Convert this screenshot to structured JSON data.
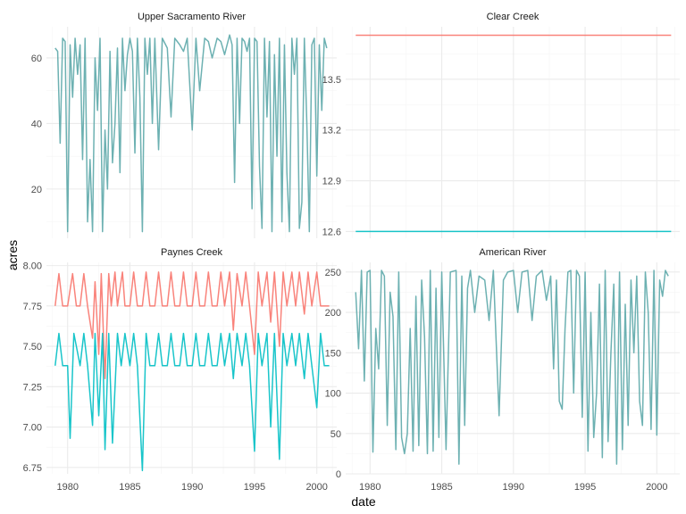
{
  "chart_data": {
    "type": "line",
    "layout": "facet_wrap 2x2, free y scales",
    "xlabel": "date",
    "ylabel": "acres",
    "x_ticks": [
      1980,
      1985,
      1990,
      1995,
      2000
    ],
    "xlim": [
      1978.3,
      2001.6
    ],
    "grid": "on",
    "legend": "none",
    "colors": {
      "series_1": "#F8766D",
      "series_2": "#00BFC4",
      "overlap": "#5DA8AA"
    },
    "panels": [
      {
        "title": "Upper Sacramento River",
        "ylim": [
          5,
          69.5
        ],
        "y_ticks": [
          20,
          40,
          60
        ],
        "series": [
          {
            "color": "#5DA8AA",
            "x": [
              1979.0,
              1979.2,
              1979.4,
              1979.6,
              1979.8,
              1980.0,
              1980.2,
              1980.4,
              1980.6,
              1980.8,
              1981.0,
              1981.2,
              1981.4,
              1981.6,
              1981.8,
              1982.0,
              1982.2,
              1982.4,
              1982.6,
              1982.8,
              1983.0,
              1983.2,
              1983.4,
              1983.6,
              1983.8,
              1984.0,
              1984.2,
              1984.4,
              1984.6,
              1984.8,
              1985.0,
              1985.2,
              1985.4,
              1985.6,
              1985.8,
              1986.0,
              1986.2,
              1986.4,
              1986.6,
              1986.8,
              1987.0,
              1987.3,
              1987.6,
              1988.0,
              1988.3,
              1988.6,
              1989.0,
              1989.3,
              1989.6,
              1990.0,
              1990.3,
              1990.6,
              1991.0,
              1991.3,
              1991.6,
              1992.0,
              1992.3,
              1992.6,
              1993.0,
              1993.2,
              1993.4,
              1993.6,
              1993.8,
              1994.0,
              1994.2,
              1994.4,
              1994.6,
              1994.8,
              1995.0,
              1995.2,
              1995.4,
              1995.6,
              1995.8,
              1996.0,
              1996.2,
              1996.4,
              1996.6,
              1996.8,
              1997.0,
              1997.2,
              1997.4,
              1997.6,
              1997.8,
              1998.0,
              1998.2,
              1998.4,
              1998.6,
              1998.8,
              1999.0,
              1999.2,
              1999.4,
              1999.6,
              1999.8,
              2000.0,
              2000.2,
              2000.4,
              2000.6,
              2000.8
            ],
            "values": [
              63,
              62,
              34,
              66,
              65,
              7,
              64,
              48,
              66,
              55,
              64,
              29,
              66,
              10,
              29,
              7,
              60,
              44,
              66,
              7,
              38,
              20,
              62,
              28,
              40,
              63,
              25,
              66,
              50,
              61,
              66,
              62,
              31,
              66,
              48,
              7,
              66,
              55,
              66,
              40,
              66,
              32,
              66,
              63,
              42,
              66,
              64,
              62,
              66,
              38,
              66,
              50,
              66,
              65,
              60,
              66,
              65,
              61,
              67,
              64,
              22,
              66,
              40,
              66,
              65,
              62,
              66,
              14,
              66,
              65,
              27,
              8,
              66,
              42,
              65,
              7,
              61,
              30,
              66,
              10,
              64,
              25,
              7,
              66,
              55,
              66,
              8,
              16,
              66,
              40,
              7,
              64,
              66,
              24,
              64,
              44,
              66,
              63
            ]
          }
        ]
      },
      {
        "title": "Clear Creek",
        "ylim": [
          12.56,
          13.81
        ],
        "y_ticks": [
          12.6,
          12.9,
          13.2,
          13.5
        ],
        "series": [
          {
            "color": "#F8766D",
            "x": [
              1979,
              2001
            ],
            "values": [
              13.76,
              13.76
            ]
          },
          {
            "color": "#00BFC4",
            "x": [
              1979,
              2001
            ],
            "values": [
              12.6,
              12.6
            ]
          }
        ]
      },
      {
        "title": "Paynes Creek",
        "ylim": [
          6.71,
          8.02
        ],
        "y_ticks": [
          6.75,
          7.0,
          7.25,
          7.5,
          7.75,
          8.0
        ],
        "series": [
          {
            "color": "#F8766D",
            "x": [
              1979.0,
              1979.3,
              1979.6,
              1980.0,
              1980.4,
              1980.7,
              1981.0,
              1981.3,
              1981.6,
              1982.0,
              1982.2,
              1982.5,
              1982.7,
              1983.0,
              1983.3,
              1983.5,
              1983.8,
              1984.0,
              1984.4,
              1984.6,
              1985.0,
              1985.3,
              1985.6,
              1986.0,
              1986.3,
              1986.6,
              1987.0,
              1987.3,
              1987.6,
              1988.0,
              1988.3,
              1988.6,
              1989.0,
              1989.3,
              1989.6,
              1990.0,
              1990.3,
              1990.6,
              1991.0,
              1991.3,
              1991.6,
              1992.0,
              1992.3,
              1992.6,
              1993.0,
              1993.3,
              1993.6,
              1994.0,
              1994.3,
              1994.6,
              1995.0,
              1995.3,
              1995.6,
              1996.0,
              1996.3,
              1996.6,
              1997.0,
              1997.3,
              1997.6,
              1998.0,
              1998.3,
              1998.6,
              1999.0,
              1999.3,
              1999.6,
              2000.0,
              2000.3,
              2000.6,
              2001.0
            ],
            "values": [
              7.75,
              7.95,
              7.75,
              7.75,
              7.95,
              7.75,
              7.75,
              7.95,
              7.75,
              7.55,
              7.9,
              7.45,
              7.95,
              7.3,
              7.95,
              7.75,
              7.96,
              7.75,
              7.96,
              7.75,
              7.75,
              7.96,
              7.75,
              7.75,
              7.96,
              7.75,
              7.75,
              7.96,
              7.75,
              7.75,
              7.96,
              7.75,
              7.75,
              7.96,
              7.75,
              7.75,
              7.96,
              7.75,
              7.75,
              7.96,
              7.75,
              7.75,
              7.96,
              7.75,
              7.96,
              7.6,
              7.95,
              7.75,
              7.96,
              7.75,
              7.45,
              7.96,
              7.75,
              7.96,
              7.65,
              7.96,
              7.5,
              7.96,
              7.75,
              7.96,
              7.75,
              7.96,
              7.7,
              7.96,
              7.75,
              7.96,
              7.75,
              7.75,
              7.75
            ]
          },
          {
            "color": "#00BFC4",
            "x": [
              1979.0,
              1979.3,
              1979.6,
              1980.0,
              1980.2,
              1980.5,
              1981.0,
              1981.3,
              1981.6,
              1982.0,
              1982.2,
              1982.5,
              1982.8,
              1983.0,
              1983.3,
              1983.6,
              1984.0,
              1984.3,
              1984.6,
              1985.0,
              1985.3,
              1985.6,
              1986.0,
              1986.3,
              1986.6,
              1987.0,
              1987.3,
              1987.6,
              1988.0,
              1988.3,
              1988.6,
              1989.0,
              1989.3,
              1989.6,
              1990.0,
              1990.3,
              1990.6,
              1991.0,
              1991.3,
              1991.6,
              1992.0,
              1992.3,
              1992.6,
              1993.0,
              1993.3,
              1993.6,
              1994.0,
              1994.3,
              1994.6,
              1995.0,
              1995.3,
              1995.6,
              1996.0,
              1996.3,
              1996.6,
              1997.0,
              1997.3,
              1997.6,
              1998.0,
              1998.3,
              1998.6,
              1999.0,
              1999.3,
              1999.6,
              2000.0,
              2000.3,
              2000.6,
              2001.0
            ],
            "values": [
              7.38,
              7.58,
              7.38,
              7.38,
              6.93,
              7.58,
              7.38,
              7.58,
              7.38,
              7.01,
              7.58,
              7.07,
              7.58,
              6.86,
              7.58,
              6.9,
              7.58,
              7.38,
              7.58,
              7.38,
              7.58,
              7.38,
              6.73,
              7.58,
              7.38,
              7.38,
              7.58,
              7.38,
              7.38,
              7.58,
              7.38,
              7.38,
              7.58,
              7.38,
              7.38,
              7.58,
              7.38,
              7.38,
              7.58,
              7.38,
              7.38,
              7.58,
              7.38,
              7.58,
              7.3,
              7.58,
              7.38,
              7.58,
              7.38,
              6.85,
              7.58,
              7.38,
              7.58,
              7.0,
              7.58,
              6.8,
              7.58,
              7.38,
              7.58,
              7.38,
              7.58,
              7.3,
              7.58,
              7.38,
              7.12,
              7.58,
              7.38,
              7.38
            ]
          }
        ]
      },
      {
        "title": "American River",
        "ylim": [
          0,
          262
        ],
        "y_ticks": [
          0,
          50,
          100,
          150,
          200,
          250
        ],
        "series": [
          {
            "color": "#5DA8AA",
            "x": [
              1979.0,
              1979.2,
              1979.4,
              1979.6,
              1979.8,
              1980.0,
              1980.2,
              1980.4,
              1980.6,
              1980.8,
              1981.0,
              1981.2,
              1981.4,
              1981.6,
              1981.8,
              1982.0,
              1982.2,
              1982.4,
              1982.6,
              1982.8,
              1983.0,
              1983.2,
              1983.4,
              1983.6,
              1983.8,
              1984.0,
              1984.2,
              1984.4,
              1984.6,
              1984.8,
              1985.0,
              1985.3,
              1985.6,
              1986.0,
              1986.2,
              1986.4,
              1986.6,
              1986.8,
              1987.0,
              1987.3,
              1987.6,
              1988.0,
              1988.3,
              1988.6,
              1989.0,
              1989.3,
              1989.6,
              1990.0,
              1990.3,
              1990.6,
              1991.0,
              1991.3,
              1991.6,
              1992.0,
              1992.3,
              1992.6,
              1992.8,
              1993.0,
              1993.2,
              1993.4,
              1993.6,
              1993.8,
              1994.0,
              1994.2,
              1994.4,
              1994.6,
              1994.8,
              1995.0,
              1995.2,
              1995.4,
              1995.6,
              1995.8,
              1996.0,
              1996.2,
              1996.4,
              1996.6,
              1996.8,
              1997.0,
              1997.2,
              1997.4,
              1997.6,
              1997.8,
              1998.0,
              1998.2,
              1998.4,
              1998.6,
              1998.8,
              1999.0,
              1999.2,
              1999.4,
              1999.6,
              1999.8,
              2000.0,
              2000.2,
              2000.4,
              2000.6,
              2000.8
            ],
            "values": [
              225,
              155,
              252,
              115,
              250,
              252,
              27,
              180,
              130,
              252,
              245,
              60,
              225,
              195,
              30,
              250,
              45,
              25,
              50,
              180,
              28,
              220,
              35,
              240,
              170,
              25,
              252,
              28,
              230,
              45,
              250,
              30,
              250,
              252,
              12,
              245,
              60,
              230,
              252,
              200,
              245,
              240,
              190,
              252,
              72,
              240,
              250,
              252,
              200,
              250,
              252,
              190,
              245,
              252,
              215,
              245,
              130,
              240,
              90,
              80,
              180,
              250,
              252,
              100,
              252,
              245,
              70,
              250,
              28,
              200,
              45,
              100,
              235,
              20,
              252,
              40,
              150,
              235,
              12,
              250,
              30,
              210,
              60,
              240,
              150,
              245,
              90,
              60,
              250,
              200,
              55,
              252,
              48,
              240,
              220,
              252,
              245
            ]
          }
        ]
      }
    ]
  }
}
